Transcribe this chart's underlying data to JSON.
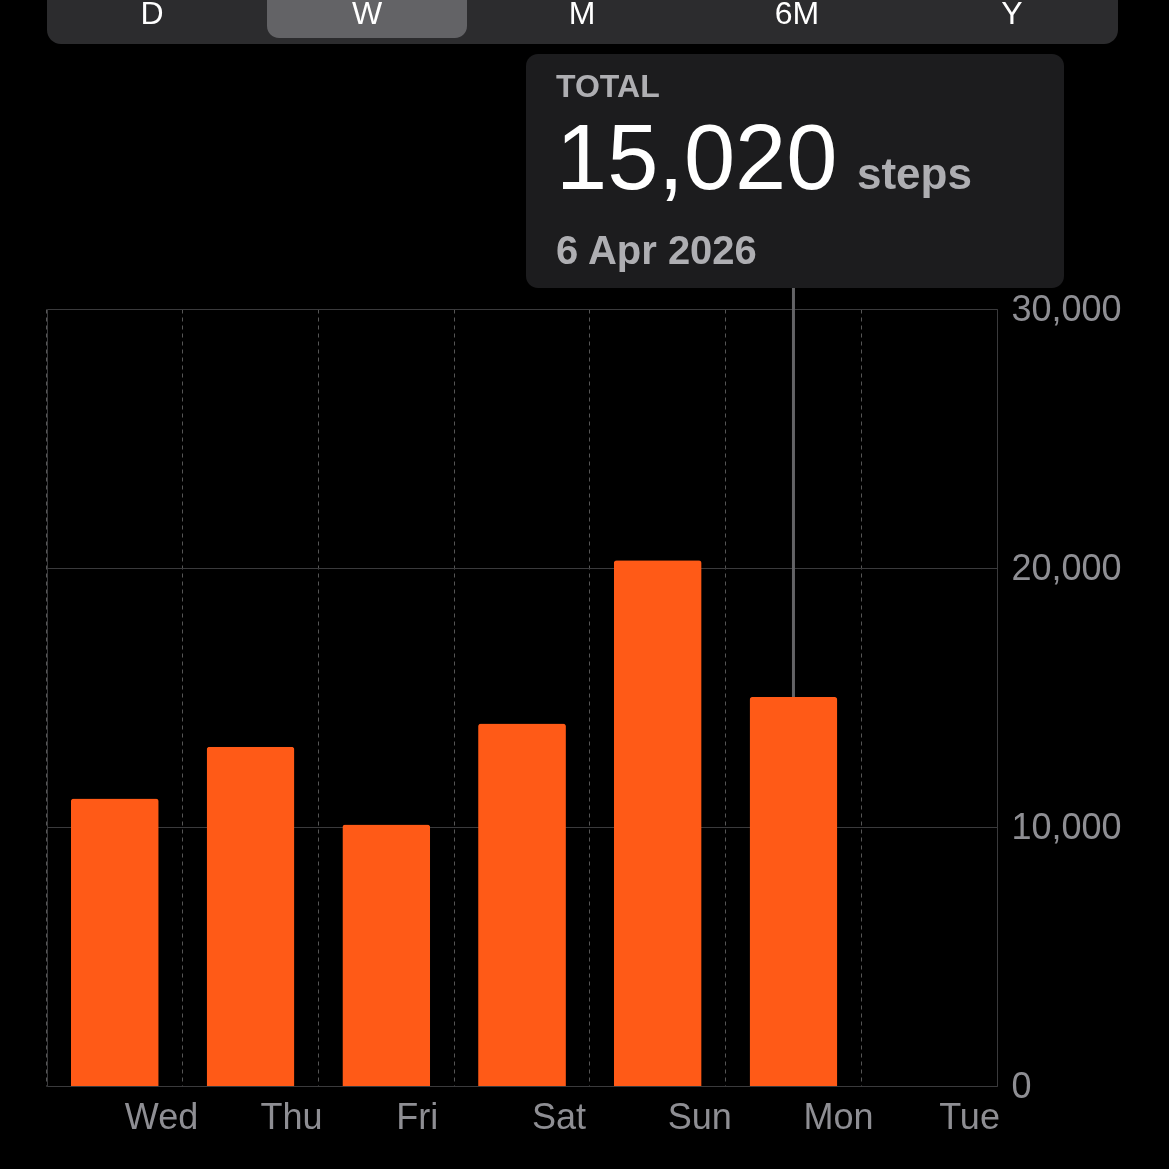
{
  "chart_data": {
    "type": "bar",
    "categories": [
      "Wed",
      "Thu",
      "Fri",
      "Sat",
      "Sun",
      "Mon",
      "Tue"
    ],
    "values": [
      11100,
      13100,
      10100,
      14000,
      20300,
      15020,
      null
    ],
    "color": "#ff5a17",
    "ylim": [
      0,
      30000
    ],
    "yticks": [
      {
        "value": 0,
        "label": "0"
      },
      {
        "value": 10000,
        "label": "10,000"
      },
      {
        "value": 20000,
        "label": "20,000"
      },
      {
        "value": 30000,
        "label": "30,000"
      }
    ],
    "grid": true,
    "annotations": [
      "D",
      "W",
      "M",
      "6M",
      "Y",
      "TOTAL",
      "15,020",
      "steps",
      "6 Apr 2026"
    ]
  }
}
